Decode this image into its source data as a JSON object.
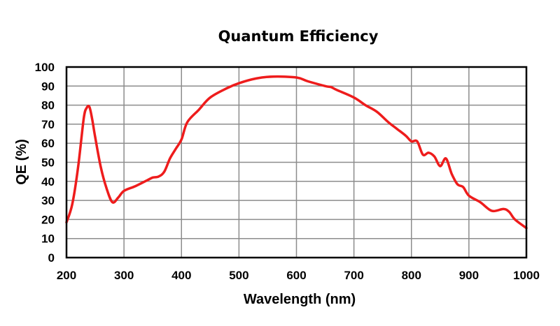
{
  "chart_data": {
    "type": "line",
    "title": "Quantum Efficiency",
    "xlabel": "Wavelength (nm)",
    "ylabel": "QE (%)",
    "xlim": [
      200,
      1000
    ],
    "ylim": [
      0,
      100
    ],
    "x_ticks": [
      200,
      300,
      400,
      500,
      600,
      700,
      800,
      900,
      1000
    ],
    "y_ticks": [
      0,
      10,
      20,
      30,
      40,
      50,
      60,
      70,
      80,
      90,
      100
    ],
    "grid": true,
    "legend": "none",
    "series": [
      {
        "name": "QE",
        "color": "#ee1c1c",
        "x": [
          200,
          210,
          220,
          230,
          235,
          240,
          245,
          250,
          260,
          270,
          280,
          290,
          300,
          320,
          340,
          350,
          360,
          370,
          380,
          390,
          400,
          410,
          430,
          450,
          480,
          500,
          530,
          560,
          600,
          620,
          650,
          660,
          670,
          700,
          720,
          740,
          760,
          775,
          790,
          800,
          810,
          820,
          830,
          840,
          850,
          860,
          870,
          880,
          890,
          900,
          920,
          940,
          960,
          970,
          980,
          1000
        ],
        "y": [
          18.5,
          28,
          47,
          73,
          78.5,
          79,
          72,
          63,
          47,
          36,
          29,
          31.5,
          35,
          37.5,
          40.5,
          42,
          42.5,
          45,
          52,
          57,
          62,
          71,
          77.5,
          84,
          89,
          91.5,
          94,
          95,
          94.5,
          92.5,
          90,
          89.5,
          88,
          84,
          80,
          76.5,
          71,
          67.5,
          64,
          61,
          61,
          54,
          55,
          53,
          48,
          52,
          44,
          38.5,
          37,
          32.5,
          29,
          24.5,
          25.5,
          24,
          20,
          15.5
        ]
      }
    ]
  }
}
